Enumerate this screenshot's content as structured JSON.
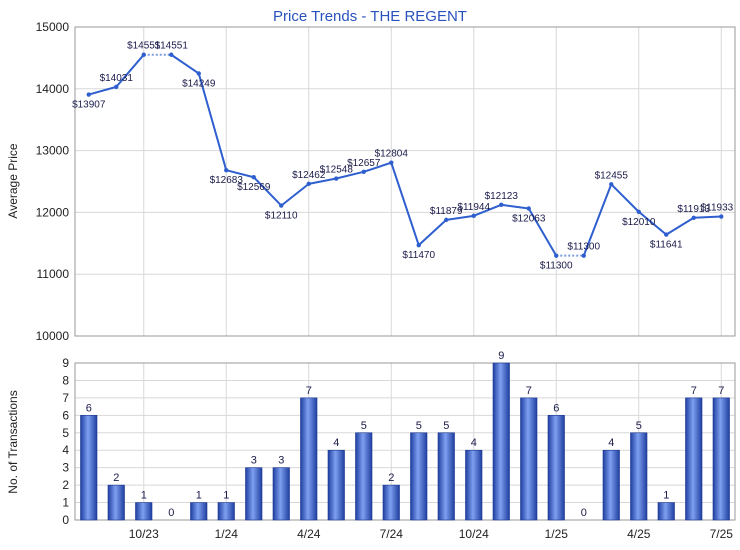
{
  "chart_data": [
    {
      "type": "line",
      "title": "Price Trends - THE REGENT",
      "ylabel": "Average Price",
      "ylim": [
        10000,
        15000
      ],
      "yticks": [
        "10000",
        "11000",
        "12000",
        "13000",
        "14000",
        "15000"
      ],
      "grid": true,
      "color": "#2f5fcf",
      "gap_color": "#7a9be0",
      "series": [
        {
          "values": [
            13907,
            14031,
            14551,
            14551,
            14249,
            12683,
            12569,
            12110,
            12462,
            12548,
            12657,
            12804,
            11470,
            11879,
            11944,
            12123,
            12063,
            11300,
            11300,
            12455,
            12010,
            11641,
            11913,
            11933
          ],
          "labels": [
            "$13907",
            "$14031",
            "$14551",
            "$14551",
            "$14249",
            "$12683",
            "$12569",
            "$12110",
            "$12462",
            "$12548",
            "$12657",
            "$12804",
            "$11470",
            "$11879",
            "$11944",
            "$12123",
            "$12063",
            "$11300",
            "$11300",
            "$12455",
            "$12010",
            "$11641",
            "$11913",
            "$11933"
          ],
          "dashed_segments": [
            2,
            17
          ]
        }
      ]
    },
    {
      "type": "bar",
      "ylabel": "No. of Transactions",
      "ylim": [
        0,
        9
      ],
      "yticks": [
        "0",
        "1",
        "2",
        "3",
        "4",
        "5",
        "6",
        "7",
        "8",
        "9"
      ],
      "grid": true,
      "color": "#2f5fcf",
      "values": [
        6,
        2,
        1,
        0,
        1,
        1,
        3,
        3,
        7,
        4,
        5,
        2,
        5,
        5,
        4,
        9,
        7,
        6,
        0,
        4,
        5,
        1,
        7,
        7
      ],
      "x_tick_labels": [
        {
          "index": 2,
          "label": "10/23"
        },
        {
          "index": 5,
          "label": "1/24"
        },
        {
          "index": 8,
          "label": "4/24"
        },
        {
          "index": 11,
          "label": "7/24"
        },
        {
          "index": 14,
          "label": "10/24"
        },
        {
          "index": 17,
          "label": "1/25"
        },
        {
          "index": 20,
          "label": "4/25"
        },
        {
          "index": 23,
          "label": "7/25"
        }
      ]
    }
  ]
}
